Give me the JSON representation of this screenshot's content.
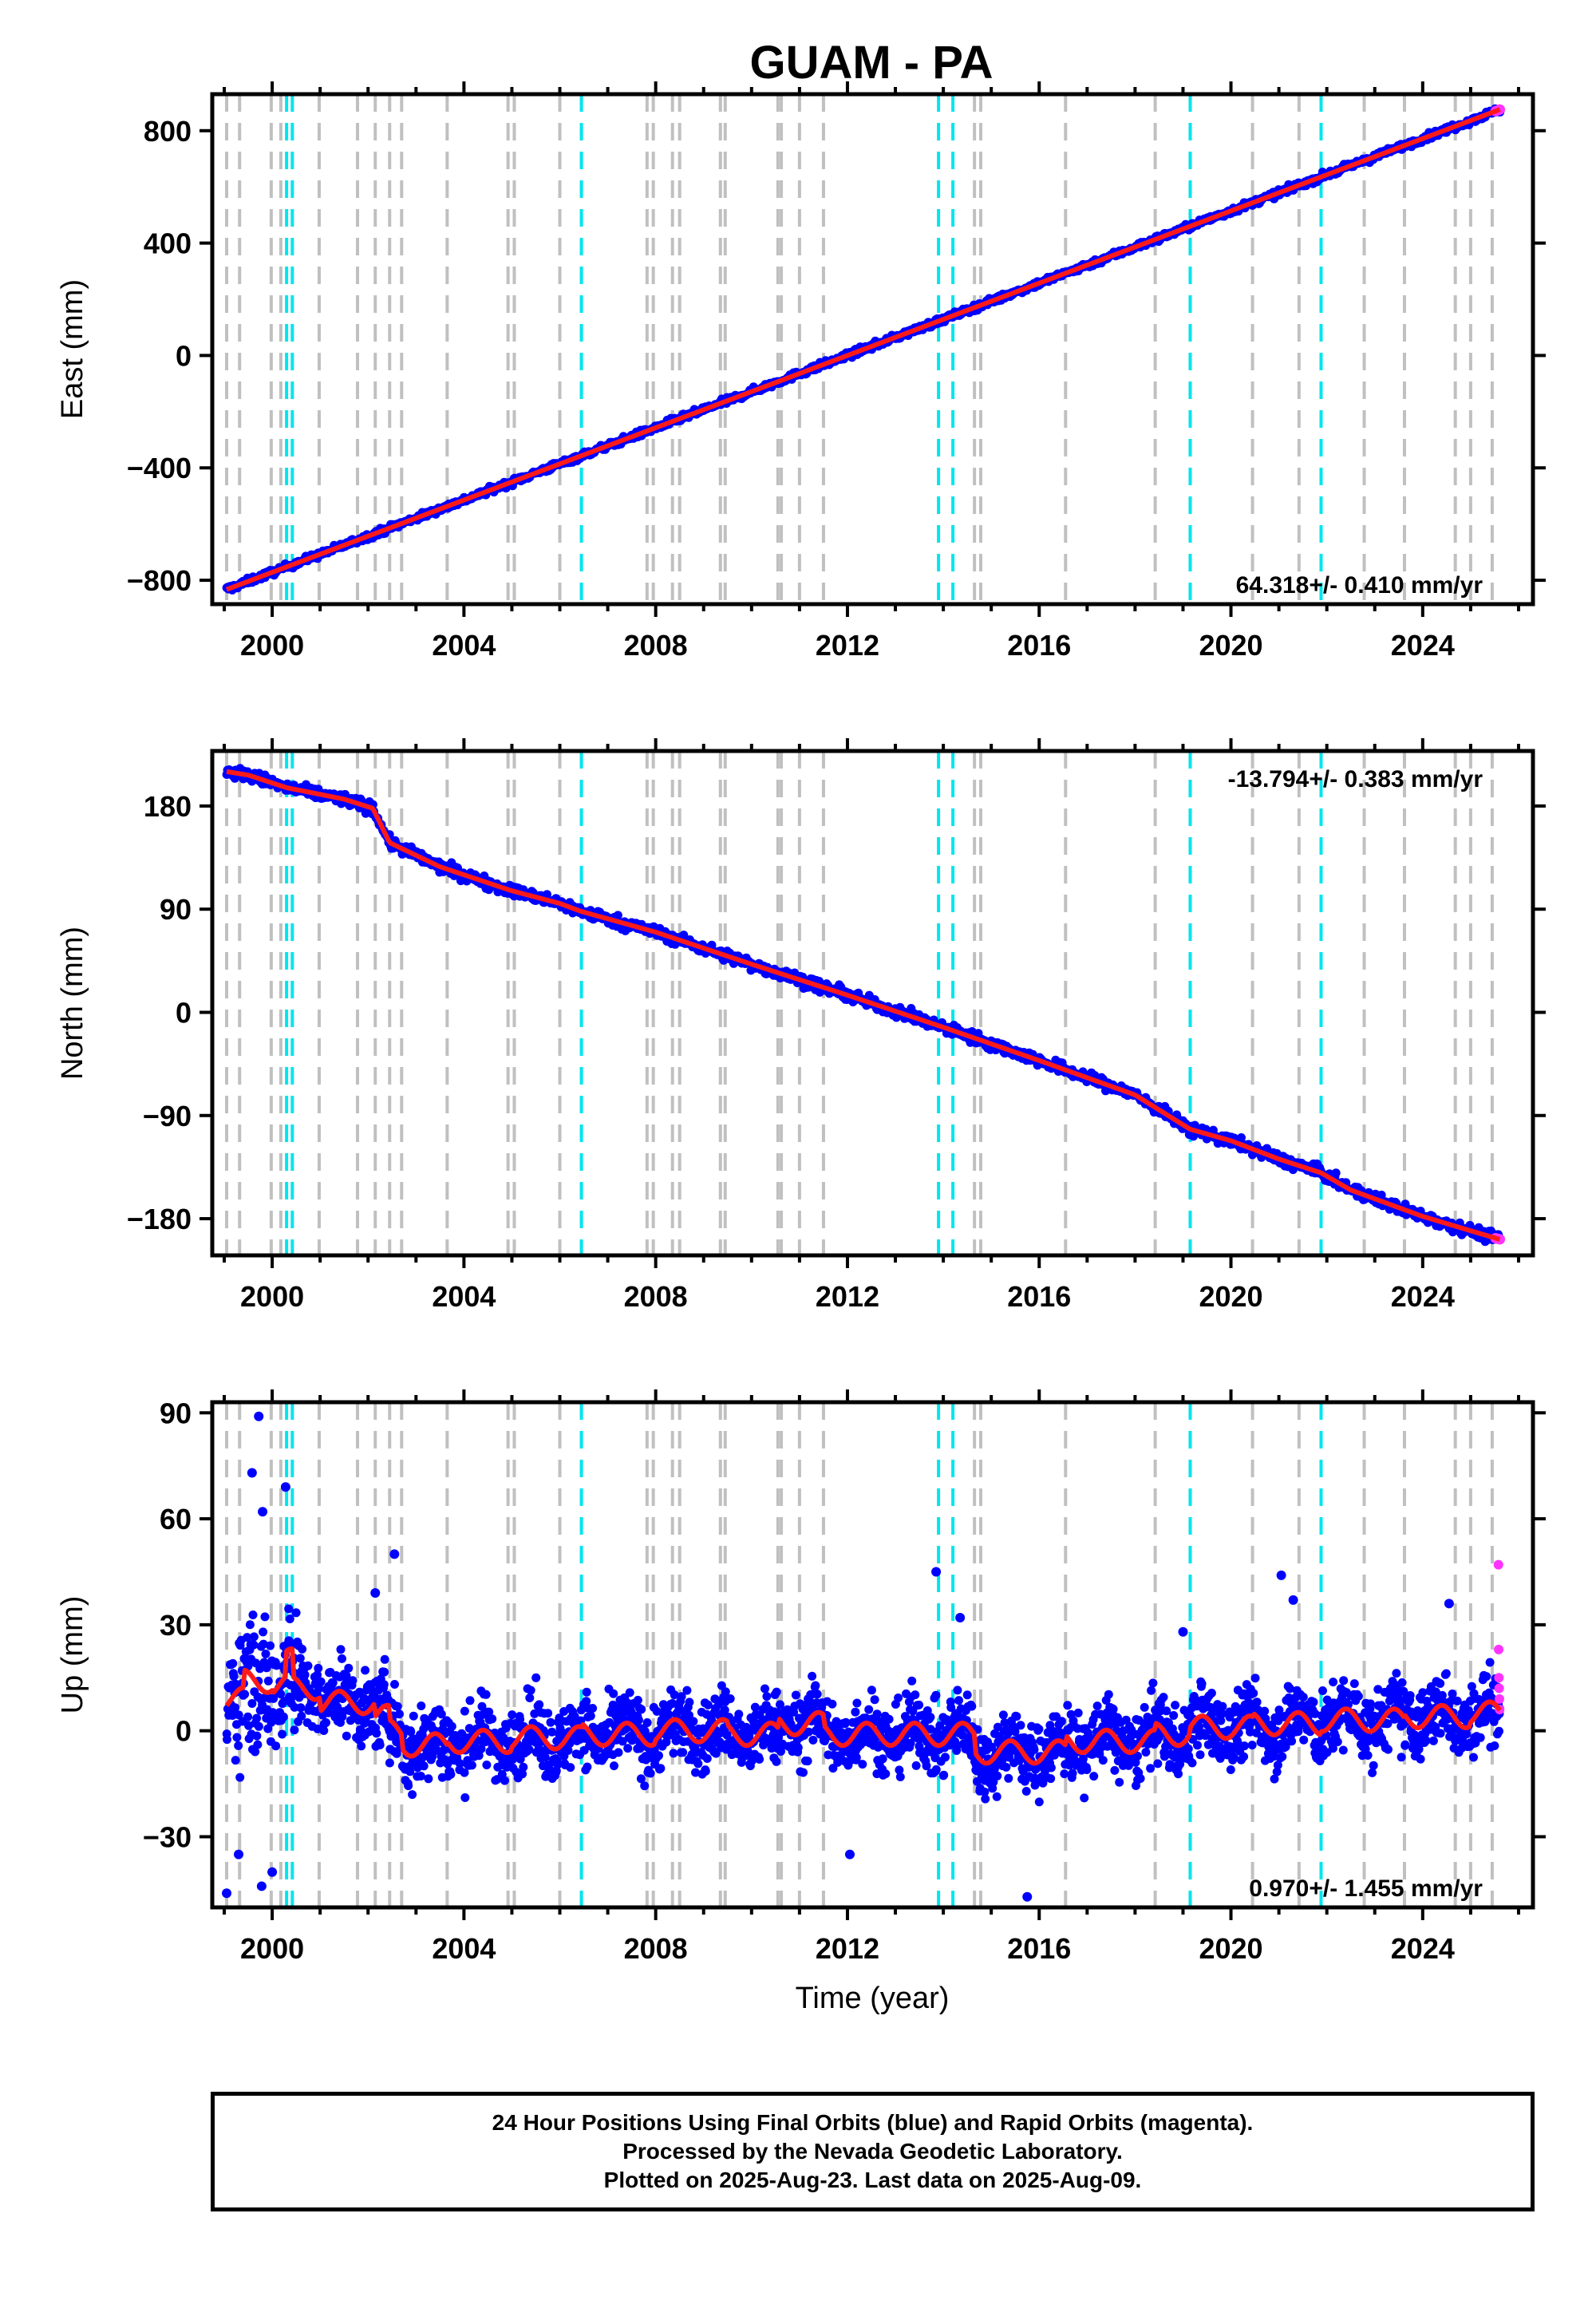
{
  "chart_data": {
    "title": "GUAM - PA",
    "type": "scatter",
    "x_axis": {
      "label": "Time (year)",
      "range": [
        1998.75,
        2026.3
      ],
      "ticks": [
        2000,
        2004,
        2008,
        2012,
        2016,
        2020,
        2024
      ]
    },
    "data_start": 1999.05,
    "data_end": 2025.61,
    "equipment_change_lines": {
      "color_gray": "#c0c0c0",
      "color_cyan": "#00e5ee",
      "gray_years": [
        1999.05,
        1999.32,
        1999.98,
        2000.18,
        2000.98,
        2001.78,
        2002.15,
        2002.45,
        2002.7,
        2003.65,
        2004.92,
        2005.05,
        2006.0,
        2007.82,
        2007.95,
        2008.35,
        2008.5,
        2009.35,
        2009.45,
        2010.55,
        2010.62,
        2011.0,
        2011.5,
        2014.65,
        2014.78,
        2016.55,
        2018.42,
        2020.45,
        2021.42,
        2022.78,
        2023.62,
        2024.68,
        2025.0,
        2025.45
      ],
      "cyan_years": [
        2000.3,
        2000.42,
        2006.45,
        2013.9,
        2014.2,
        2019.15,
        2021.88
      ]
    },
    "panels": [
      {
        "name": "East",
        "ylabel": "East (mm)",
        "ylim": [
          -885,
          930
        ],
        "yticks": [
          -800,
          -400,
          0,
          400,
          800
        ],
        "velocity_label": "64.318+/- 0.410 mm/yr",
        "velocity_position": "bottom-right",
        "model": {
          "type": "linear",
          "value_at_2012": 0,
          "rate_mm_per_yr": 64.318
        },
        "scatter_spread_mm": 8
      },
      {
        "name": "North",
        "ylabel": "North (mm)",
        "ylim": [
          -212,
          228
        ],
        "yticks": [
          -180,
          -90,
          0,
          90,
          180
        ],
        "velocity_label": "-13.794+/- 0.383 mm/yr",
        "velocity_position": "top-right",
        "model": {
          "type": "piecewise",
          "knots": [
            [
              1999.05,
              210
            ],
            [
              1999.5,
              207
            ],
            [
              2000.3,
              196
            ],
            [
              2001.5,
              186
            ],
            [
              2002.1,
              178
            ],
            [
              2002.45,
              148
            ],
            [
              2003.5,
              127
            ],
            [
              2005.0,
              106
            ],
            [
              2006.0,
              95
            ],
            [
              2006.45,
              88
            ],
            [
              2008.0,
              70
            ],
            [
              2010.0,
              42
            ],
            [
              2012.0,
              15
            ],
            [
              2014.0,
              -13
            ],
            [
              2016.0,
              -42
            ],
            [
              2018.0,
              -72
            ],
            [
              2019.15,
              -102
            ],
            [
              2020.0,
              -112
            ],
            [
              2021.0,
              -128
            ],
            [
              2021.88,
              -140
            ],
            [
              2022.5,
              -155
            ],
            [
              2024.0,
              -178
            ],
            [
              2025.6,
              -198
            ]
          ]
        },
        "scatter_spread_mm": 3.5
      },
      {
        "name": "Up",
        "ylabel": "Up (mm)",
        "ylim": [
          -50,
          93
        ],
        "yticks": [
          -30,
          0,
          30,
          60,
          90
        ],
        "velocity_label": "0.970+/- 1.455 mm/yr",
        "velocity_position": "bottom-right",
        "model": {
          "type": "steps_seasonal",
          "steps": [
            [
              1999.05,
              9
            ],
            [
              1999.4,
              14
            ],
            [
              2000.0,
              13
            ],
            [
              2000.3,
              20
            ],
            [
              2000.45,
              12
            ],
            [
              2001.0,
              8
            ],
            [
              2002.15,
              4
            ],
            [
              2002.45,
              0
            ],
            [
              2002.7,
              -4
            ],
            [
              2003.65,
              -3
            ],
            [
              2005.0,
              -2
            ],
            [
              2006.45,
              -1
            ],
            [
              2008.0,
              0
            ],
            [
              2009.5,
              -1
            ],
            [
              2010.55,
              2
            ],
            [
              2011.5,
              -1
            ],
            [
              2014.65,
              -6
            ],
            [
              2016.55,
              -3
            ],
            [
              2018.42,
              -1
            ],
            [
              2019.15,
              1
            ],
            [
              2020.45,
              2
            ],
            [
              2021.88,
              3
            ],
            [
              2023.62,
              4
            ],
            [
              2025.0,
              5
            ]
          ],
          "seasonal_amplitude_mm": 3.2
        },
        "scatter_spread_mm": 7,
        "outliers": [
          [
            1999.05,
            -46
          ],
          [
            1999.3,
            -35
          ],
          [
            1999.72,
            89
          ],
          [
            1999.58,
            73
          ],
          [
            1999.8,
            62
          ],
          [
            2000.28,
            69
          ],
          [
            1999.78,
            -44
          ],
          [
            2000.0,
            -40
          ],
          [
            2002.55,
            50
          ],
          [
            2002.15,
            39
          ],
          [
            2013.85,
            45
          ],
          [
            2014.35,
            32
          ],
          [
            2015.75,
            -47
          ],
          [
            2012.05,
            -35
          ],
          [
            2021.05,
            44
          ],
          [
            2021.3,
            37
          ],
          [
            2024.55,
            36
          ],
          [
            2019.0,
            28
          ]
        ]
      }
    ],
    "series": [
      {
        "name": "Final Orbits (blue)",
        "color": "#0000ff"
      },
      {
        "name": "Rapid Orbits (magenta)",
        "color": "#ff33ff"
      },
      {
        "name": "model",
        "color": "#ff1a1a"
      }
    ],
    "rapid_up_values": [
      47,
      23,
      15,
      12,
      9,
      6
    ]
  },
  "footer": {
    "line1": "24 Hour Positions Using Final Orbits (blue) and Rapid Orbits (magenta).",
    "line2": "Processed by the Nevada Geodetic Laboratory.",
    "line3": "Plotted on 2025-Aug-23. Last data on 2025-Aug-09."
  }
}
